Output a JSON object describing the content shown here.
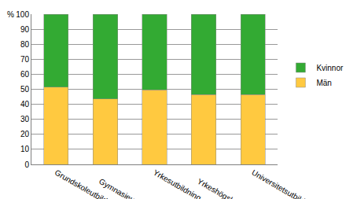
{
  "chart_data": {
    "type": "bar",
    "stacked": true,
    "ylabel": "%",
    "categories": [
      "Grundskoleutbildning",
      "Gymnasieutbildning",
      "Yrkesutbildning",
      "Yrkeshögskoleutbildning",
      "Universitetsutbildning"
    ],
    "series": [
      {
        "name": "Män",
        "color": "#ffc940",
        "values": [
          51.5,
          43.5,
          49.5,
          46.5,
          46.5
        ]
      },
      {
        "name": "Kvinnor",
        "color": "#33aa33",
        "values": [
          48.5,
          56.5,
          50.5,
          53.5,
          53.5
        ]
      }
    ],
    "ylim": [
      0,
      100
    ],
    "yticks": [
      0,
      10,
      20,
      30,
      40,
      50,
      60,
      70,
      80,
      90,
      100
    ],
    "grid": true,
    "legend": "right"
  }
}
